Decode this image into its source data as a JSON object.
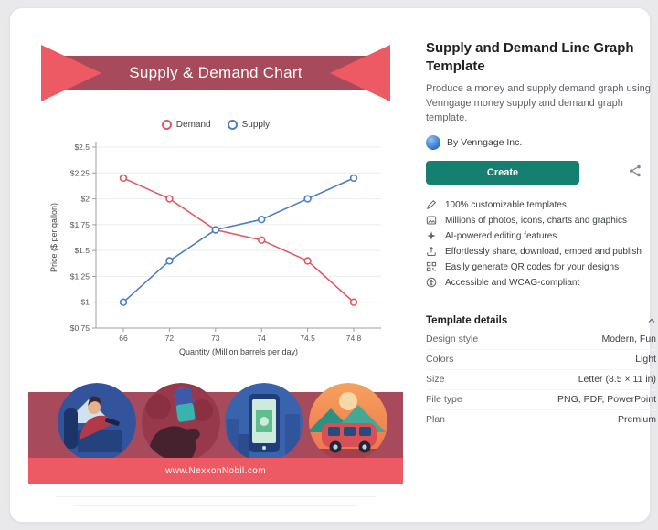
{
  "preview": {
    "banner_title": "Supply & Demand Chart",
    "website": "www.NexxonNobil.com",
    "illustrations": [
      "gas-attendant",
      "hand-credit-card",
      "phone-money",
      "van-sunset"
    ]
  },
  "chart_data": {
    "type": "line",
    "x": [
      66,
      72,
      73,
      74,
      74.5,
      74.8
    ],
    "x_scale": "categorical",
    "x_tick_labels": [
      "66",
      "72",
      "73",
      "74",
      "74.5",
      "74.8"
    ],
    "series": [
      {
        "name": "Demand",
        "color": "#E25763",
        "values": [
          2.2,
          2.0,
          1.7,
          1.6,
          1.4,
          1.0
        ]
      },
      {
        "name": "Supply",
        "color": "#4D7EC2",
        "values": [
          1.0,
          1.4,
          1.7,
          1.8,
          2.0,
          2.2
        ]
      }
    ],
    "xlabel": "Quantity (Million barrels per day)",
    "ylabel": "Price ($ per gallon)",
    "ylim": [
      0.75,
      2.5
    ],
    "ytick_step": 0.25,
    "ytick_labels": [
      "$0.75",
      "$1",
      "$1.25",
      "$1.5",
      "$1.75",
      "$2",
      "$2.25",
      "$2.5"
    ],
    "grid": true,
    "legend_position": "top"
  },
  "info": {
    "title": "Supply and Demand Line Graph Template",
    "description": "Produce a money and supply demand graph using Venngage money supply and demand graph template.",
    "byline": "By Venngage Inc.",
    "create_label": "Create",
    "features": [
      {
        "icon": "pencil-icon",
        "label": "100% customizable templates"
      },
      {
        "icon": "photos-icon",
        "label": "Millions of photos, icons, charts and graphics"
      },
      {
        "icon": "ai-sparkle-icon",
        "label": "AI-powered editing features"
      },
      {
        "icon": "share-upload-icon",
        "label": "Effortlessly share, download, embed and publish"
      },
      {
        "icon": "qr-code-icon",
        "label": "Easily generate QR codes for your designs"
      },
      {
        "icon": "accessibility-icon",
        "label": "Accessible and WCAG-compliant"
      }
    ],
    "details": {
      "header": "Template details",
      "rows": [
        {
          "label": "Design style",
          "value": "Modern, Fun"
        },
        {
          "label": "Colors",
          "value": "Light"
        },
        {
          "label": "Size",
          "value": "Letter (8.5 × 11 in)"
        },
        {
          "label": "File type",
          "value": "PNG, PDF, PowerPoint"
        },
        {
          "label": "Plan",
          "value": "Premium"
        }
      ]
    }
  },
  "colors": {
    "banner_dark": "#A74A5B",
    "banner_bright": "#EE5A64",
    "demand_line": "#E25763",
    "supply_line": "#4D7EC2",
    "create_button": "#15806F"
  }
}
